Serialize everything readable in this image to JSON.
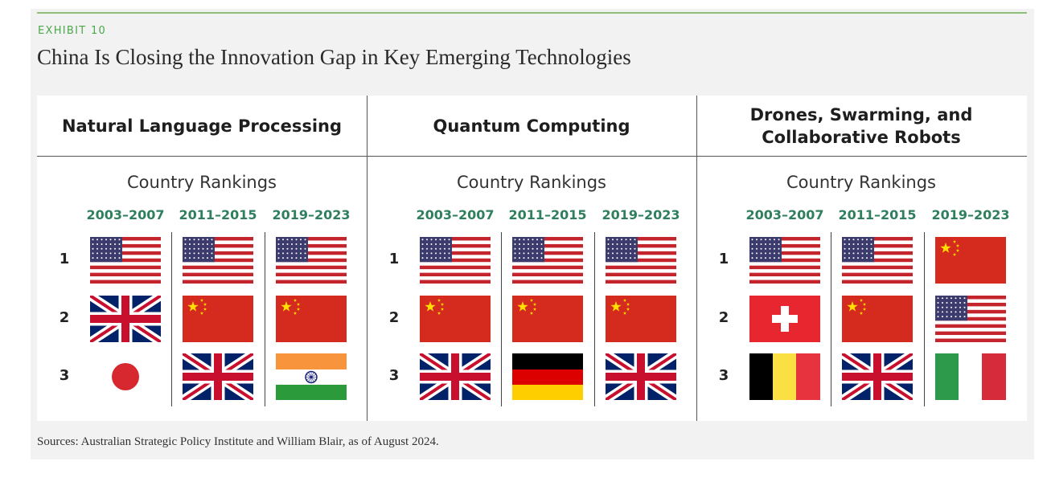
{
  "exhibit_label": "EXHIBIT 10",
  "title": "China Is Closing the Innovation Gap in Key Emerging Technologies",
  "colors": {
    "accent_green": "#4aa84a",
    "period_green": "#2f7f5f",
    "rule_green": "#8cc07a"
  },
  "panels": [
    {
      "title": "Natural Language Processing",
      "subtitle": "Country Rankings",
      "periods": [
        "2003–2007",
        "2011–2015",
        "2019–2023"
      ],
      "ranks": [
        "1",
        "2",
        "3"
      ],
      "rankings": [
        [
          "United States",
          "United Kingdom",
          "Japan"
        ],
        [
          "United States",
          "China",
          "United Kingdom"
        ],
        [
          "United States",
          "China",
          "India"
        ]
      ]
    },
    {
      "title": "Quantum Computing",
      "subtitle": "Country Rankings",
      "periods": [
        "2003–2007",
        "2011–2015",
        "2019–2023"
      ],
      "ranks": [
        "1",
        "2",
        "3"
      ],
      "rankings": [
        [
          "United States",
          "China",
          "United Kingdom"
        ],
        [
          "United States",
          "China",
          "Germany"
        ],
        [
          "United States",
          "China",
          "United Kingdom"
        ]
      ]
    },
    {
      "title": "Drones, Swarming, and\nCollaborative Robots",
      "subtitle": "Country Rankings",
      "periods": [
        "2003–2007",
        "2011–2015",
        "2019–2023"
      ],
      "ranks": [
        "1",
        "2",
        "3"
      ],
      "rankings": [
        [
          "United States",
          "Switzerland",
          "Belgium"
        ],
        [
          "United States",
          "China",
          "United Kingdom"
        ],
        [
          "China",
          "United States",
          "Italy"
        ]
      ]
    }
  ],
  "sources": "Sources: Australian Strategic Policy Institute and William Blair, as of August 2024."
}
